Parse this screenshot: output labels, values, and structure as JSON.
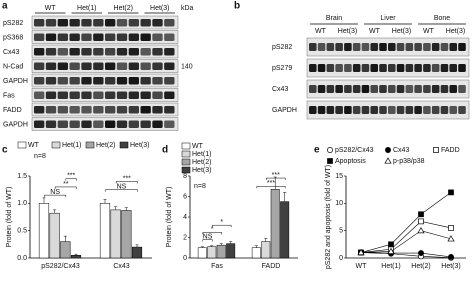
{
  "blot_a": {
    "label": "a",
    "lanes": [
      "WT",
      "Het(1)",
      "Het(2)",
      "Het(3)"
    ],
    "unit": "kDa",
    "rows": [
      "pS282",
      "pS368",
      "Cx43",
      "N-Cad",
      "GAPDH",
      "Fas",
      "FADD",
      "GAPDH"
    ],
    "marker": "140"
  },
  "blot_b": {
    "label": "b",
    "tissues": [
      "Brain",
      "Liver",
      "Bone"
    ],
    "groups": [
      "WT",
      "Het(3)"
    ],
    "rows": [
      "pS282",
      "pS279",
      "Cx43",
      "GAPDH"
    ]
  },
  "chart_data": [
    {
      "type": "bar",
      "label": "c",
      "ylabel": "Protein (fold of WT)",
      "note": "n=8",
      "categories": [
        "pS282/Cx43",
        "Cx43"
      ],
      "series": [
        {
          "name": "WT",
          "color": "#ffffff",
          "values": [
            1.0,
            1.0
          ],
          "errors": [
            0.1,
            0.07
          ]
        },
        {
          "name": "Het(1)",
          "color": "#d9d9d9",
          "values": [
            0.82,
            0.88
          ],
          "errors": [
            0.06,
            0.06
          ]
        },
        {
          "name": "Het(2)",
          "color": "#a6a6a6",
          "values": [
            0.3,
            0.87
          ],
          "errors": [
            0.1,
            0.05
          ]
        },
        {
          "name": "Het(3)",
          "color": "#404040",
          "values": [
            0.05,
            0.2
          ],
          "errors": [
            0.02,
            0.04
          ]
        }
      ],
      "ylim": [
        0,
        1.5
      ],
      "yticks": [
        {
          "value": 0,
          "label": "0.0"
        },
        {
          "value": 0.5,
          "label": "0.5"
        },
        {
          "value": 1,
          "label": "1.0"
        },
        {
          "value": 1.5,
          "label": "1.5"
        }
      ],
      "annotations": [
        "NS",
        "**",
        "***",
        "NS",
        "***"
      ]
    },
    {
      "type": "bar",
      "label": "d",
      "ylabel": "Protein (fold of WT)",
      "note": "n=8",
      "categories": [
        "Fas",
        "FADD"
      ],
      "series": [
        {
          "name": "WT",
          "color": "#ffffff",
          "values": [
            1.0,
            1.0
          ],
          "errors": [
            0.1,
            0.2
          ]
        },
        {
          "name": "Het(1)",
          "color": "#d9d9d9",
          "values": [
            1.1,
            1.6
          ],
          "errors": [
            0.1,
            0.3
          ]
        },
        {
          "name": "Het(2)",
          "color": "#a6a6a6",
          "values": [
            1.25,
            6.7
          ],
          "errors": [
            0.15,
            1.2
          ]
        },
        {
          "name": "Het(3)",
          "color": "#404040",
          "values": [
            1.4,
            5.5
          ],
          "errors": [
            0.2,
            0.9
          ]
        }
      ],
      "ylim": [
        0,
        8
      ],
      "yticks": [
        0,
        2,
        4,
        6,
        8
      ],
      "annotations": [
        "NS",
        "*",
        "*",
        "***",
        "***"
      ]
    },
    {
      "type": "line",
      "label": "e",
      "ylabel": "pS282 and apoptosis (fold of WT)",
      "categories": [
        "WT",
        "Het(1)",
        "Het(2)",
        "Het(3)"
      ],
      "series": [
        {
          "name": "pS282/Cx43",
          "marker": "circle",
          "filled": false,
          "values": [
            1,
            0.8,
            0.3,
            0.05
          ]
        },
        {
          "name": "Cx43",
          "marker": "circle",
          "filled": true,
          "values": [
            1,
            0.9,
            0.9,
            0.2
          ]
        },
        {
          "name": "FADD",
          "marker": "square",
          "filled": false,
          "values": [
            1,
            1.6,
            6.7,
            5.5
          ]
        },
        {
          "name": "Apoptosis",
          "marker": "square",
          "filled": true,
          "values": [
            1,
            2.5,
            8,
            12
          ]
        },
        {
          "name": "p-p38/p38",
          "marker": "triangle",
          "filled": false,
          "values": [
            1,
            1.2,
            5,
            3.5
          ]
        }
      ],
      "ylim": [
        0,
        15
      ],
      "yticks": [
        0,
        5,
        10,
        15
      ]
    }
  ]
}
